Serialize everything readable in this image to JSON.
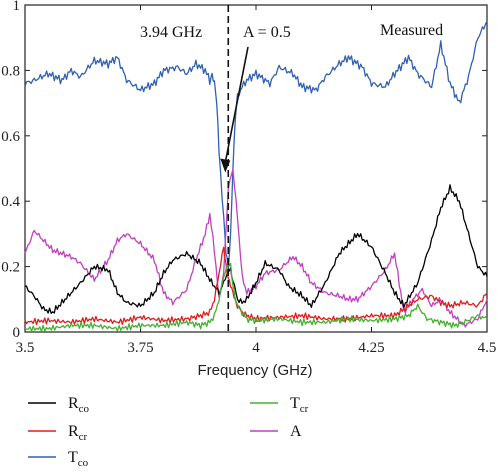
{
  "chart_data": {
    "type": "line",
    "xlabel": "Frequency (GHz)",
    "ylabel": "",
    "xlim": [
      3.5,
      4.5
    ],
    "ylim": [
      0,
      1
    ],
    "x_ticks": [
      "3.5",
      "3.75",
      "4",
      "4.25",
      "4.5"
    ],
    "y_ticks": [
      "0",
      "0.2",
      "0.4",
      "0.6",
      "0.8",
      "1"
    ],
    "grid": false,
    "annotations": {
      "freq_label": "3.94 GHz",
      "marker_x": 3.94,
      "absorb_label": "A = 0.5",
      "measured_label": "Measured"
    },
    "legend": {
      "placement": "below",
      "entries": [
        {
          "symbol": "R",
          "sub": "co",
          "color": "#000000"
        },
        {
          "symbol": "R",
          "sub": "cr",
          "color": "#e01b1b"
        },
        {
          "symbol": "T",
          "sub": "co",
          "color": "#3060b0"
        },
        {
          "symbol": "T",
          "sub": "cr",
          "color": "#44b030"
        },
        {
          "symbol": "A",
          "sub": "",
          "color": "#c040c0"
        }
      ]
    },
    "series": [
      {
        "key": "Tco",
        "color": "#3060b0",
        "x": [
          3.5,
          3.52,
          3.55,
          3.58,
          3.6,
          3.62,
          3.65,
          3.68,
          3.7,
          3.72,
          3.75,
          3.78,
          3.8,
          3.83,
          3.85,
          3.87,
          3.89,
          3.9,
          3.905,
          3.91,
          3.915,
          3.92,
          3.93,
          3.935,
          3.94,
          3.945,
          3.95,
          3.955,
          3.96,
          3.97,
          3.98,
          4.0,
          4.03,
          4.05,
          4.08,
          4.1,
          4.13,
          4.15,
          4.18,
          4.2,
          4.23,
          4.25,
          4.28,
          4.3,
          4.33,
          4.35,
          4.38,
          4.4,
          4.42,
          4.44,
          4.46,
          4.48,
          4.5
        ],
        "values": [
          0.76,
          0.77,
          0.79,
          0.77,
          0.8,
          0.78,
          0.83,
          0.82,
          0.84,
          0.77,
          0.74,
          0.76,
          0.8,
          0.81,
          0.79,
          0.82,
          0.8,
          0.77,
          0.79,
          0.76,
          0.7,
          0.55,
          0.35,
          0.25,
          0.2,
          0.3,
          0.5,
          0.65,
          0.72,
          0.75,
          0.77,
          0.79,
          0.76,
          0.81,
          0.79,
          0.75,
          0.74,
          0.78,
          0.82,
          0.84,
          0.81,
          0.76,
          0.75,
          0.79,
          0.84,
          0.79,
          0.75,
          0.88,
          0.76,
          0.7,
          0.78,
          0.9,
          0.95
        ]
      },
      {
        "key": "A",
        "color": "#c040c0",
        "x": [
          3.5,
          3.52,
          3.54,
          3.56,
          3.58,
          3.6,
          3.62,
          3.65,
          3.68,
          3.7,
          3.72,
          3.75,
          3.78,
          3.8,
          3.82,
          3.85,
          3.87,
          3.89,
          3.9,
          3.91,
          3.92,
          3.93,
          3.94,
          3.95,
          3.96,
          3.97,
          3.98,
          4.0,
          4.02,
          4.05,
          4.08,
          4.1,
          4.12,
          4.15,
          4.18,
          4.2,
          4.22,
          4.25,
          4.28,
          4.3,
          4.32,
          4.34,
          4.36,
          4.38,
          4.4,
          4.42,
          4.45,
          4.48,
          4.5
        ],
        "values": [
          0.24,
          0.31,
          0.28,
          0.25,
          0.24,
          0.23,
          0.21,
          0.16,
          0.22,
          0.28,
          0.3,
          0.27,
          0.22,
          0.12,
          0.09,
          0.13,
          0.22,
          0.3,
          0.36,
          0.25,
          0.1,
          0.18,
          0.44,
          0.5,
          0.35,
          0.17,
          0.12,
          0.14,
          0.18,
          0.19,
          0.23,
          0.2,
          0.15,
          0.12,
          0.11,
          0.1,
          0.1,
          0.14,
          0.19,
          0.24,
          0.06,
          0.1,
          0.13,
          0.08,
          0.1,
          0.06,
          0.02,
          0.04,
          0.1
        ]
      },
      {
        "key": "Rco",
        "color": "#000000",
        "x": [
          3.5,
          3.52,
          3.54,
          3.56,
          3.58,
          3.6,
          3.62,
          3.65,
          3.68,
          3.7,
          3.72,
          3.75,
          3.78,
          3.8,
          3.82,
          3.85,
          3.88,
          3.9,
          3.92,
          3.93,
          3.94,
          3.945,
          3.95,
          3.96,
          3.97,
          3.98,
          4.0,
          4.02,
          4.05,
          4.07,
          4.1,
          4.12,
          4.15,
          4.18,
          4.2,
          4.22,
          4.25,
          4.28,
          4.3,
          4.32,
          4.35,
          4.38,
          4.4,
          4.42,
          4.44,
          4.46,
          4.48,
          4.5
        ],
        "values": [
          0.14,
          0.11,
          0.07,
          0.06,
          0.09,
          0.12,
          0.15,
          0.2,
          0.19,
          0.12,
          0.09,
          0.08,
          0.12,
          0.18,
          0.22,
          0.24,
          0.21,
          0.16,
          0.12,
          0.15,
          0.19,
          0.19,
          0.16,
          0.1,
          0.09,
          0.1,
          0.15,
          0.21,
          0.19,
          0.14,
          0.11,
          0.08,
          0.15,
          0.24,
          0.27,
          0.3,
          0.26,
          0.18,
          0.12,
          0.08,
          0.15,
          0.28,
          0.38,
          0.44,
          0.4,
          0.3,
          0.2,
          0.17
        ]
      },
      {
        "key": "Rcr",
        "color": "#e01b1b",
        "x": [
          3.5,
          3.55,
          3.6,
          3.65,
          3.7,
          3.75,
          3.8,
          3.85,
          3.88,
          3.9,
          3.91,
          3.92,
          3.93,
          3.935,
          3.94,
          3.945,
          3.95,
          3.955,
          3.96,
          3.97,
          3.98,
          4.0,
          4.05,
          4.1,
          4.15,
          4.2,
          4.25,
          4.3,
          4.33,
          4.35,
          4.38,
          4.4,
          4.42,
          4.45,
          4.48,
          4.5
        ],
        "values": [
          0.03,
          0.035,
          0.03,
          0.04,
          0.03,
          0.045,
          0.035,
          0.04,
          0.05,
          0.06,
          0.1,
          0.18,
          0.26,
          0.2,
          0.16,
          0.14,
          0.12,
          0.1,
          0.08,
          0.06,
          0.05,
          0.04,
          0.045,
          0.05,
          0.04,
          0.04,
          0.05,
          0.05,
          0.08,
          0.1,
          0.11,
          0.09,
          0.08,
          0.09,
          0.08,
          0.12
        ]
      },
      {
        "key": "Tcr",
        "color": "#44b030",
        "x": [
          3.5,
          3.55,
          3.6,
          3.65,
          3.7,
          3.75,
          3.8,
          3.85,
          3.88,
          3.9,
          3.91,
          3.92,
          3.93,
          3.94,
          3.945,
          3.95,
          3.955,
          3.96,
          3.97,
          3.98,
          4.0,
          4.05,
          4.1,
          4.15,
          4.2,
          4.25,
          4.3,
          4.33,
          4.35,
          4.37,
          4.4,
          4.43,
          4.45,
          4.48,
          4.5
        ],
        "values": [
          0.01,
          0.01,
          0.02,
          0.02,
          0.01,
          0.02,
          0.02,
          0.03,
          0.02,
          0.03,
          0.05,
          0.1,
          0.17,
          0.21,
          0.2,
          0.14,
          0.1,
          0.08,
          0.06,
          0.04,
          0.035,
          0.04,
          0.03,
          0.03,
          0.04,
          0.035,
          0.04,
          0.05,
          0.08,
          0.04,
          0.03,
          0.02,
          0.03,
          0.05,
          0.04
        ]
      }
    ]
  }
}
